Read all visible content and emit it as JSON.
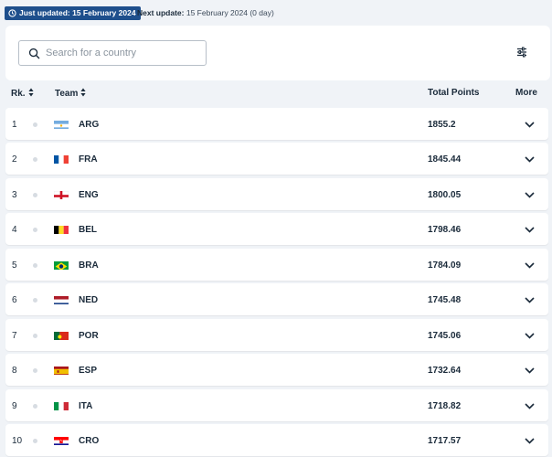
{
  "topbar": {
    "just_updated": "Just updated: 15 February 2024",
    "next_label": "Next update:",
    "next_value": "15 February 2024 (0 day)"
  },
  "search": {
    "placeholder": "Search for a country"
  },
  "columns": {
    "rank": "Rk.",
    "team": "Team",
    "points": "Total Points",
    "more": "More"
  },
  "rows": [
    {
      "rank": "1",
      "team": "ARG",
      "points": "1855.2"
    },
    {
      "rank": "2",
      "team": "FRA",
      "points": "1845.44"
    },
    {
      "rank": "3",
      "team": "ENG",
      "points": "1800.05"
    },
    {
      "rank": "4",
      "team": "BEL",
      "points": "1798.46"
    },
    {
      "rank": "5",
      "team": "BRA",
      "points": "1784.09"
    },
    {
      "rank": "6",
      "team": "NED",
      "points": "1745.48"
    },
    {
      "rank": "7",
      "team": "POR",
      "points": "1745.06"
    },
    {
      "rank": "8",
      "team": "ESP",
      "points": "1732.64"
    },
    {
      "rank": "9",
      "team": "ITA",
      "points": "1718.82"
    },
    {
      "rank": "10",
      "team": "CRO",
      "points": "1717.57"
    }
  ],
  "icons": {
    "clock": "clock-icon",
    "search": "search-icon",
    "filter": "filter-icon",
    "sort": "sort-icon",
    "chevron": "chevron-down-icon"
  },
  "colors": {
    "badge_bg": "#1e4f8c",
    "page_bg": "#f0f3f7",
    "row_bg": "#ffffff",
    "text": "#1a2a3a"
  }
}
